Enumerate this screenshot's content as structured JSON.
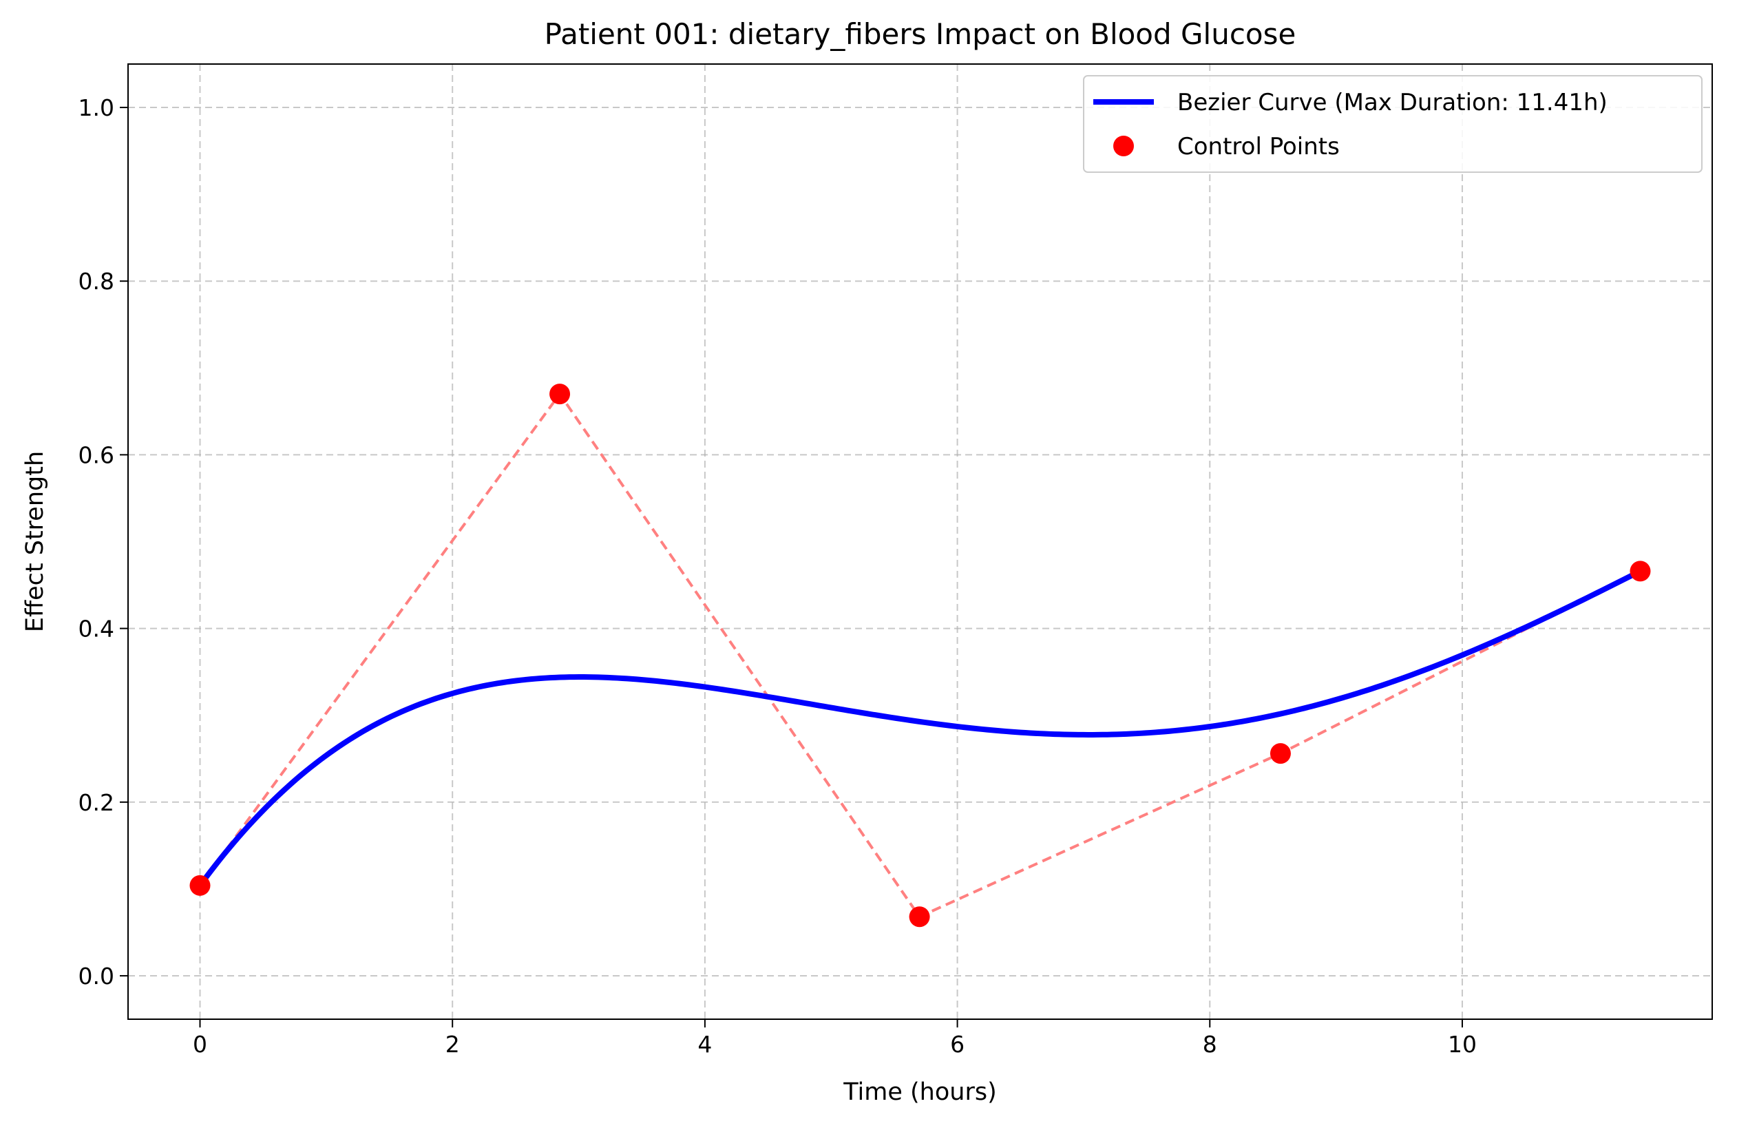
{
  "chart_data": {
    "type": "line",
    "title": "Patient 001: dietary_fibers Impact on Blood Glucose",
    "xlabel": "Time (hours)",
    "ylabel": "Effect Strength",
    "xlim": [
      -0.57,
      11.98
    ],
    "ylim": [
      -0.05,
      1.05
    ],
    "xticks": [
      0,
      2,
      4,
      6,
      8,
      10
    ],
    "yticks": [
      0.0,
      0.2,
      0.4,
      0.6,
      0.8,
      1.0
    ],
    "xtick_labels": [
      "0",
      "2",
      "4",
      "6",
      "8",
      "10"
    ],
    "ytick_labels": [
      "0.0",
      "0.2",
      "0.4",
      "0.6",
      "0.8",
      "1.0"
    ],
    "grid": true,
    "legend_position": "top-right",
    "series": [
      {
        "name": "Bezier Curve (Max Duration: 11.41h)",
        "kind": "bezier",
        "color": "#0000ff",
        "control_points_ref": "Control Points"
      },
      {
        "name": "Control Points",
        "kind": "markers",
        "color": "#ff0000",
        "connector_color": "#ff8080",
        "x": [
          0.0,
          2.85,
          5.7,
          8.56,
          11.41
        ],
        "y": [
          0.104,
          0.67,
          0.068,
          0.256,
          0.466
        ]
      }
    ]
  }
}
